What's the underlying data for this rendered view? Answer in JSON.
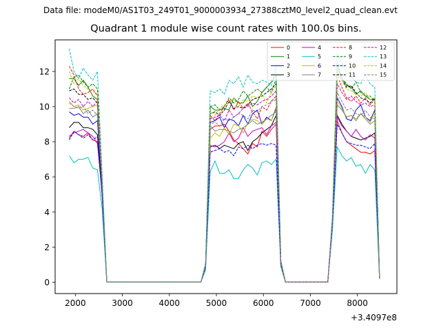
{
  "figure": {
    "suptitle": "Data file: modeM0/AS1T03_249T01_9000003934_27388cztM0_level2_quad_clean.evt",
    "title": "Quadrant 1 module wise count rates with 100.0s bins.",
    "offset_label": "+3.4097e8"
  },
  "chart_data": {
    "type": "line",
    "title": "Quadrant 1 module wise count rates with 100.0s bins.",
    "xlabel": "",
    "ylabel": "",
    "x_offset": 340970000,
    "xlim": [
      1570,
      8840
    ],
    "ylim": [
      -0.65,
      13.8
    ],
    "xticks": [
      2000,
      3000,
      4000,
      5000,
      6000,
      7000,
      8000
    ],
    "yticks": [
      0,
      2,
      4,
      6,
      8,
      10,
      12
    ],
    "legend_position": "top-right",
    "x": [
      1870,
      1970,
      2070,
      2170,
      2270,
      2370,
      2470,
      2570,
      2670,
      2770,
      2870,
      2970,
      3070,
      3170,
      3270,
      3370,
      3470,
      3570,
      3670,
      3770,
      3870,
      3970,
      4070,
      4170,
      4270,
      4370,
      4470,
      4570,
      4670,
      4770,
      4870,
      4970,
      5070,
      5170,
      5270,
      5370,
      5470,
      5570,
      5670,
      5770,
      5870,
      5970,
      6070,
      6170,
      6270,
      6370,
      6470,
      6570,
      6670,
      6770,
      6870,
      6970,
      7070,
      7170,
      7270,
      7370,
      7470,
      7570,
      7670,
      7770,
      7870,
      7970,
      8070,
      8170,
      8270,
      8370,
      8470
    ],
    "series": [
      {
        "name": "0",
        "color": "#ff0000",
        "dash": "solid",
        "values": [
          8.2,
          8.6,
          8.4,
          8.3,
          8.5,
          8.1,
          8.0,
          5.2,
          0.0,
          0,
          0,
          0,
          0,
          0,
          0,
          0,
          0,
          0,
          0,
          0,
          0,
          0,
          0,
          0,
          0,
          0,
          0,
          0,
          0,
          0.8,
          8.7,
          8.9,
          8.9,
          9.0,
          8.6,
          8.1,
          7.9,
          7.6,
          7.3,
          7.9,
          7.7,
          8.6,
          8.3,
          8.7,
          9.0,
          1.0,
          0.0,
          0,
          0,
          0,
          0,
          0,
          0,
          0,
          0,
          0.0,
          3.4,
          9.2,
          8.5,
          8.0,
          7.8,
          7.6,
          7.4,
          7.4,
          7.3,
          7.5,
          0.2
        ]
      },
      {
        "name": "1",
        "color": "#008000",
        "dash": "solid",
        "values": [
          11.6,
          11.6,
          11.2,
          11.5,
          11.1,
          10.6,
          10.4,
          5.6,
          0.0,
          0,
          0,
          0,
          0,
          0,
          0,
          0,
          0,
          0,
          0,
          0,
          0,
          0,
          0,
          0,
          0,
          0,
          0,
          0,
          0,
          1.0,
          10.0,
          9.8,
          9.8,
          9.9,
          9.8,
          10.5,
          10.2,
          10.2,
          10.6,
          10.0,
          10.3,
          10.8,
          11.1,
          11.4,
          11.8,
          1.2,
          0.0,
          0,
          0,
          0,
          0,
          0,
          0,
          0,
          0,
          0.0,
          3.6,
          12.3,
          11.6,
          11.2,
          11.1,
          10.7,
          10.9,
          10.6,
          10.4,
          10.4,
          0.3
        ]
      },
      {
        "name": "2",
        "color": "#0000ff",
        "dash": "solid",
        "values": [
          9.7,
          9.5,
          9.6,
          9.4,
          9.4,
          9.0,
          9.2,
          5.0,
          0.0,
          0,
          0,
          0,
          0,
          0,
          0,
          0,
          0,
          0,
          0,
          0,
          0,
          0,
          0,
          0,
          0,
          0,
          0,
          0,
          0,
          0.9,
          9.1,
          9.2,
          9.4,
          8.8,
          9.3,
          9.2,
          8.9,
          9.5,
          9.0,
          9.6,
          9.8,
          9.0,
          9.4,
          9.2,
          9.9,
          1.0,
          0.0,
          0,
          0,
          0,
          0,
          0,
          0,
          0,
          0,
          0.0,
          3.5,
          10.5,
          10.0,
          9.3,
          9.2,
          9.8,
          10.1,
          9.4,
          9.2,
          9.8,
          0.2
        ]
      },
      {
        "name": "3",
        "color": "#000000",
        "dash": "solid",
        "values": [
          8.8,
          9.1,
          9.1,
          8.8,
          8.8,
          8.7,
          8.4,
          5.1,
          0.0,
          0,
          0,
          0,
          0,
          0,
          0,
          0,
          0,
          0,
          0,
          0,
          0,
          0,
          0,
          0,
          0,
          0,
          0,
          0,
          0,
          0.8,
          7.7,
          7.8,
          7.6,
          7.8,
          7.7,
          7.6,
          7.9,
          8.0,
          7.5,
          8.0,
          8.2,
          8.5,
          8.7,
          8.9,
          9.5,
          1.0,
          0.0,
          0,
          0,
          0,
          0,
          0,
          0,
          0,
          0,
          0.0,
          3.3,
          9.5,
          9.0,
          8.6,
          8.3,
          8.2,
          8.1,
          8.2,
          8.3,
          8.5,
          0.2
        ]
      },
      {
        "name": "4",
        "color": "#bf00bf",
        "dash": "solid",
        "values": [
          8.3,
          8.5,
          8.6,
          8.7,
          8.5,
          8.3,
          7.9,
          5.0,
          0.0,
          0,
          0,
          0,
          0,
          0,
          0,
          0,
          0,
          0,
          0,
          0,
          0,
          0,
          0,
          0,
          0,
          0,
          0,
          0,
          0,
          0.8,
          7.8,
          7.7,
          7.8,
          8.0,
          8.5,
          8.0,
          8.2,
          8.8,
          8.3,
          8.6,
          8.7,
          8.8,
          8.4,
          8.9,
          9.1,
          1.0,
          0.0,
          0,
          0,
          0,
          0,
          0,
          0,
          0,
          0,
          0.0,
          3.3,
          9.4,
          8.9,
          8.6,
          8.3,
          8.7,
          8.3,
          8.1,
          8.4,
          8.2,
          0.2
        ]
      },
      {
        "name": "5",
        "color": "#00bfbf",
        "dash": "solid",
        "values": [
          7.2,
          6.8,
          7.0,
          7.0,
          7.1,
          6.5,
          6.4,
          4.2,
          0.0,
          0,
          0,
          0,
          0,
          0,
          0,
          0,
          0,
          0,
          0,
          0,
          0,
          0,
          0,
          0,
          0,
          0,
          0,
          0,
          0,
          0.7,
          6.3,
          6.9,
          6.2,
          6.2,
          6.4,
          5.9,
          5.9,
          6.4,
          6.7,
          6.5,
          6.1,
          6.8,
          6.9,
          6.7,
          7.0,
          0.9,
          0.0,
          0,
          0,
          0,
          0,
          0,
          0,
          0,
          0,
          0.0,
          3.0,
          7.7,
          7.2,
          6.9,
          7.1,
          6.6,
          6.7,
          6.2,
          6.7,
          6.4,
          0.2
        ]
      },
      {
        "name": "6",
        "color": "#bfbf00",
        "dash": "solid",
        "values": [
          10.3,
          10.0,
          10.1,
          9.8,
          9.9,
          10.0,
          10.1,
          5.6,
          0.0,
          0,
          0,
          0,
          0,
          0,
          0,
          0,
          0,
          0,
          0,
          0,
          0,
          0,
          0,
          0,
          0,
          0,
          0,
          0,
          0,
          0.9,
          8.2,
          8.5,
          8.3,
          8.8,
          8.4,
          9.0,
          8.9,
          8.5,
          9.1,
          9.3,
          9.2,
          9.0,
          9.3,
          9.2,
          10.0,
          1.1,
          0.0,
          0,
          0,
          0,
          0,
          0,
          0,
          0,
          0,
          0.0,
          3.4,
          10.3,
          9.9,
          9.4,
          9.5,
          9.3,
          9.6,
          9.4,
          9.1,
          9.6,
          0.2
        ]
      },
      {
        "name": "7",
        "color": "#808080",
        "dash": "solid",
        "values": [
          9.9,
          9.9,
          10.0,
          9.6,
          9.8,
          9.4,
          9.6,
          5.5,
          0.0,
          0,
          0,
          0,
          0,
          0,
          0,
          0,
          0,
          0,
          0,
          0,
          0,
          0,
          0,
          0,
          0,
          0,
          0,
          0,
          0,
          0.9,
          8.9,
          8.6,
          8.7,
          8.7,
          8.6,
          8.5,
          8.7,
          8.8,
          9.0,
          9.2,
          9.0,
          9.1,
          9.3,
          9.5,
          9.7,
          1.1,
          0.0,
          0,
          0,
          0,
          0,
          0,
          0,
          0,
          0,
          0.0,
          3.4,
          10.1,
          9.8,
          9.4,
          9.5,
          9.2,
          9.6,
          9.3,
          9.0,
          9.2,
          0.2
        ]
      },
      {
        "name": "8",
        "color": "#ff0000",
        "dash": "dashed",
        "values": [
          12.3,
          11.8,
          11.0,
          10.7,
          10.8,
          11.0,
          10.6,
          5.8,
          0.0,
          0,
          0,
          0,
          0,
          0,
          0,
          0,
          0,
          0,
          0,
          0,
          0,
          0,
          0,
          0,
          0,
          0,
          0,
          0,
          0,
          1.0,
          9.5,
          9.2,
          9.6,
          10.0,
          10.4,
          9.8,
          10.3,
          9.9,
          10.2,
          9.7,
          9.3,
          10.0,
          9.8,
          10.3,
          10.6,
          1.2,
          0.0,
          0,
          0,
          0,
          0,
          0,
          0,
          0,
          0,
          0.0,
          3.6,
          11.8,
          11.1,
          10.5,
          10.3,
          10.6,
          10.2,
          10.5,
          10.1,
          10.4,
          0.3
        ]
      },
      {
        "name": "9",
        "color": "#008000",
        "dash": "dashed",
        "values": [
          11.0,
          11.7,
          11.8,
          11.4,
          11.1,
          11.3,
          11.0,
          5.9,
          0.0,
          0,
          0,
          0,
          0,
          0,
          0,
          0,
          0,
          0,
          0,
          0,
          0,
          0,
          0,
          0,
          0,
          0,
          0,
          0,
          0,
          1.0,
          10.0,
          10.1,
          9.8,
          10.0,
          10.5,
          10.2,
          10.4,
          10.9,
          10.6,
          10.8,
          11.0,
          10.8,
          11.1,
          10.8,
          11.6,
          1.2,
          0.0,
          0,
          0,
          0,
          0,
          0,
          0,
          0,
          0,
          0.0,
          3.7,
          12.5,
          11.6,
          11.3,
          11.0,
          11.4,
          10.8,
          10.6,
          10.6,
          10.3,
          0.3
        ]
      },
      {
        "name": "10",
        "color": "#0000ff",
        "dash": "dashed",
        "values": [
          8.1,
          8.6,
          8.4,
          8.2,
          8.4,
          8.1,
          8.3,
          4.9,
          0.0,
          0,
          0,
          0,
          0,
          0,
          0,
          0,
          0,
          0,
          0,
          0,
          0,
          0,
          0,
          0,
          0,
          0,
          0,
          0,
          0,
          0.8,
          7.4,
          7.5,
          7.6,
          7.4,
          7.5,
          7.2,
          7.7,
          7.6,
          7.8,
          7.6,
          7.8,
          7.9,
          7.8,
          7.9,
          7.8,
          1.0,
          0.0,
          0,
          0,
          0,
          0,
          0,
          0,
          0,
          0,
          0.0,
          3.3,
          9.0,
          8.5,
          8.0,
          7.9,
          7.8,
          7.8,
          7.7,
          7.6,
          7.9,
          0.2
        ]
      },
      {
        "name": "11",
        "color": "#000000",
        "dash": "dashed",
        "values": [
          10.9,
          11.0,
          10.7,
          10.7,
          10.4,
          10.5,
          10.2,
          5.6,
          0.0,
          0,
          0,
          0,
          0,
          0,
          0,
          0,
          0,
          0,
          0,
          0,
          0,
          0,
          0,
          0,
          0,
          0,
          0,
          0,
          0,
          1.0,
          9.6,
          9.7,
          9.5,
          9.8,
          10.3,
          9.9,
          10.0,
          9.9,
          10.1,
          10.4,
          10.5,
          10.6,
          10.8,
          11.0,
          11.3,
          1.2,
          0.0,
          0,
          0,
          0,
          0,
          0,
          0,
          0,
          0,
          0.0,
          3.6,
          12.0,
          11.5,
          11.1,
          11.2,
          10.8,
          10.5,
          10.4,
          10.2,
          10.5,
          0.3
        ]
      },
      {
        "name": "12",
        "color": "#bf00bf",
        "dash": "dashed",
        "values": [
          10.5,
          10.2,
          10.4,
          10.0,
          10.3,
          10.0,
          10.3,
          5.7,
          0.0,
          0,
          0,
          0,
          0,
          0,
          0,
          0,
          0,
          0,
          0,
          0,
          0,
          0,
          0,
          0,
          0,
          0,
          0,
          0,
          0,
          0.9,
          9.3,
          9.4,
          9.5,
          9.2,
          9.8,
          9.4,
          9.6,
          9.9,
          10.0,
          10.2,
          10.1,
          10.3,
          10.4,
          10.6,
          10.9,
          1.1,
          0.0,
          0,
          0,
          0,
          0,
          0,
          0,
          0,
          0,
          0.0,
          3.5,
          11.3,
          10.8,
          10.4,
          10.6,
          10.3,
          10.1,
          10.2,
          10.0,
          10.1,
          0.3
        ]
      },
      {
        "name": "13",
        "color": "#00bfbf",
        "dash": "dashed",
        "values": [
          13.3,
          12.0,
          11.6,
          12.2,
          11.8,
          11.5,
          12.0,
          6.2,
          0.0,
          0,
          0,
          0,
          0,
          0,
          0,
          0,
          0,
          0,
          0,
          0,
          0,
          0,
          0,
          0,
          0,
          0,
          0,
          0,
          0,
          1.1,
          10.9,
          10.8,
          11.0,
          10.7,
          11.5,
          11.3,
          11.7,
          11.1,
          11.8,
          11.4,
          11.3,
          11.5,
          11.4,
          11.2,
          12.3,
          1.3,
          0.0,
          0,
          0,
          0,
          0,
          0,
          0,
          0,
          0,
          0.0,
          3.9,
          13.0,
          12.5,
          11.9,
          11.7,
          11.4,
          11.3,
          11.8,
          11.3,
          11.1,
          0.3
        ]
      },
      {
        "name": "14",
        "color": "#bfbf00",
        "dash": "dashed",
        "values": [
          12.0,
          11.3,
          11.6,
          11.2,
          11.0,
          10.9,
          10.7,
          5.8,
          0.0,
          0,
          0,
          0,
          0,
          0,
          0,
          0,
          0,
          0,
          0,
          0,
          0,
          0,
          0,
          0,
          0,
          0,
          0,
          0,
          0,
          1.0,
          9.8,
          9.5,
          9.9,
          10.1,
          10.2,
          10.5,
          10.0,
          10.4,
          10.3,
          10.6,
          10.5,
          10.7,
          10.2,
          10.8,
          11.2,
          1.2,
          0.0,
          0,
          0,
          0,
          0,
          0,
          0,
          0,
          0,
          0.0,
          3.6,
          12.2,
          11.5,
          11.0,
          10.9,
          10.7,
          10.6,
          10.8,
          10.4,
          10.5,
          0.3
        ]
      },
      {
        "name": "15",
        "color": "#808080",
        "dash": "dashed",
        "values": [
          10.2,
          10.0,
          9.9,
          10.0,
          9.6,
          9.8,
          9.5,
          5.5,
          0.0,
          0,
          0,
          0,
          0,
          0,
          0,
          0,
          0,
          0,
          0,
          0,
          0,
          0,
          0,
          0,
          0,
          0,
          0,
          0,
          0,
          0.9,
          9.0,
          9.1,
          8.9,
          9.3,
          9.2,
          9.4,
          9.6,
          9.5,
          9.3,
          9.8,
          9.7,
          10.0,
          10.1,
          10.3,
          10.4,
          1.1,
          0.0,
          0,
          0,
          0,
          0,
          0,
          0,
          0,
          0,
          0.0,
          3.5,
          10.8,
          10.3,
          9.8,
          9.9,
          9.6,
          9.5,
          9.8,
          9.4,
          9.3,
          0.2
        ]
      }
    ]
  }
}
